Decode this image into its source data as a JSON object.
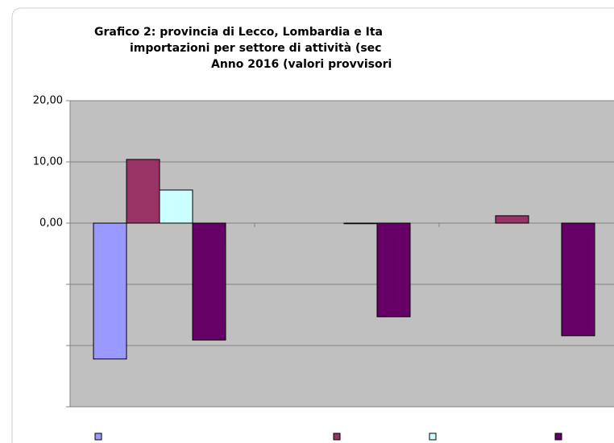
{
  "chart_data": {
    "type": "bar",
    "title_lines": [
      "Grafico 2: provincia di Lecco, Lombardia e Ita",
      "importazioni per settore di attività (sec",
      "Anno 2016 (valori provvisori"
    ],
    "categories": [
      null,
      null,
      null
    ],
    "series": [
      {
        "name": null,
        "color": "#9999ff",
        "values": [
          -22.2,
          null,
          null
        ]
      },
      {
        "name": null,
        "color": "#993366",
        "values": [
          10.4,
          null,
          1.2
        ]
      },
      {
        "name": null,
        "color": "#ccffff",
        "values": [
          5.4,
          -0.1,
          null
        ]
      },
      {
        "name": null,
        "color": "#660066",
        "values": [
          -19.1,
          -15.3,
          -18.4
        ]
      }
    ],
    "ylim": [
      -30,
      20
    ],
    "yticks": [
      {
        "value": 20,
        "label": "20,00"
      },
      {
        "value": 10,
        "label": "10,00"
      },
      {
        "value": 0,
        "label": "0,00"
      }
    ],
    "unlabeled_yticks": [
      -10,
      -20,
      -30
    ],
    "grid": true,
    "plot_background": "#c0c0c0"
  }
}
